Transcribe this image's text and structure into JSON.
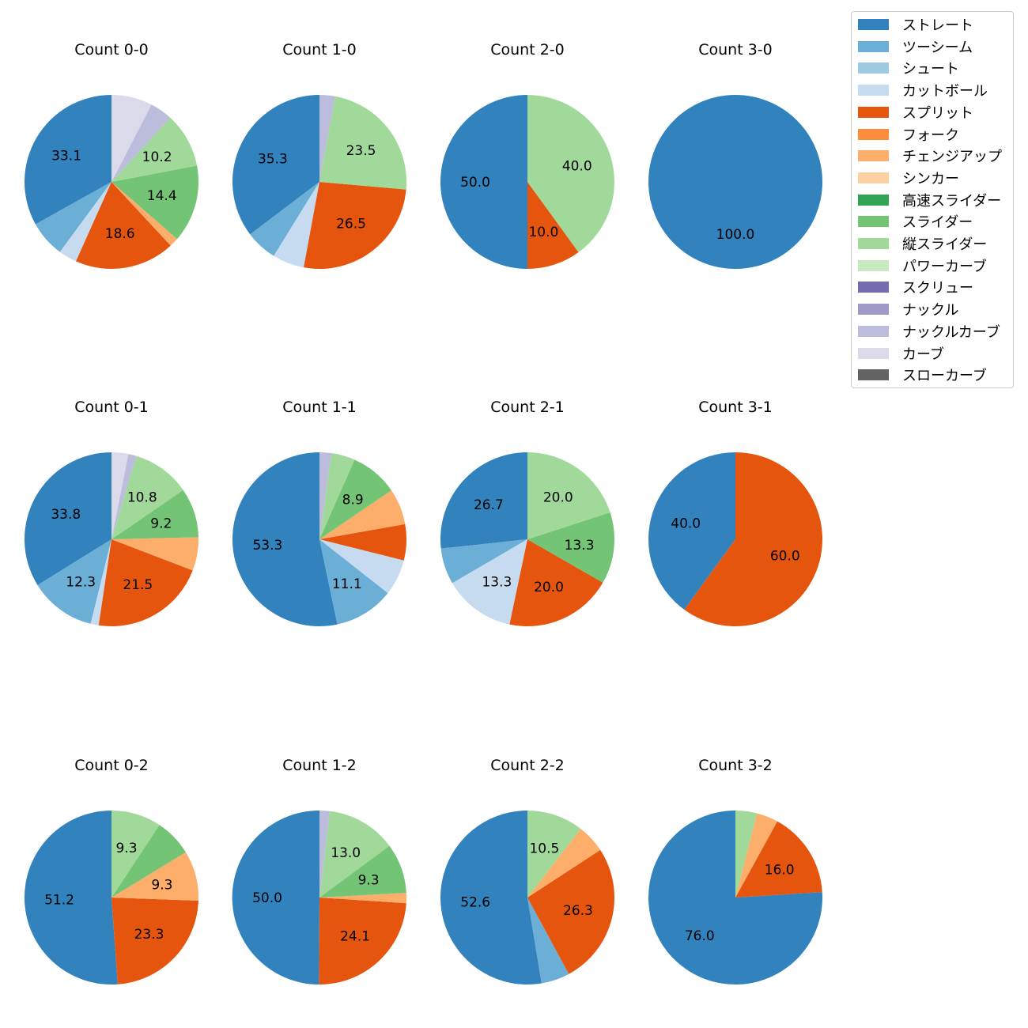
{
  "legend": {
    "items": [
      {
        "label": "ストレート",
        "color": "#3182bd"
      },
      {
        "label": "ツーシーム",
        "color": "#6baed6"
      },
      {
        "label": "シュート",
        "color": "#9ecae1"
      },
      {
        "label": "カットボール",
        "color": "#c6dbef"
      },
      {
        "label": "スプリット",
        "color": "#e6550d"
      },
      {
        "label": "フォーク",
        "color": "#fd8d3c"
      },
      {
        "label": "チェンジアップ",
        "color": "#fdae6b"
      },
      {
        "label": "シンカー",
        "color": "#fdd0a2"
      },
      {
        "label": "高速スライダー",
        "color": "#31a354"
      },
      {
        "label": "スライダー",
        "color": "#74c476"
      },
      {
        "label": "縦スライダー",
        "color": "#a1d99b"
      },
      {
        "label": "パワーカーブ",
        "color": "#c7e9c0"
      },
      {
        "label": "スクリュー",
        "color": "#756bb1"
      },
      {
        "label": "ナックル",
        "color": "#9e9ac8"
      },
      {
        "label": "ナックルカーブ",
        "color": "#bcbddc"
      },
      {
        "label": "カーブ",
        "color": "#dadaeb"
      },
      {
        "label": "スローカーブ",
        "color": "#636363"
      }
    ]
  },
  "chart_data": [
    {
      "type": "pie",
      "title": "Count 0-0",
      "slices": [
        {
          "pitch": "ストレート",
          "value": 33.1,
          "label": "33.1"
        },
        {
          "pitch": "ツーシーム",
          "value": 6.8,
          "label": ""
        },
        {
          "pitch": "カットボール",
          "value": 3.4,
          "label": ""
        },
        {
          "pitch": "スプリット",
          "value": 18.6,
          "label": "18.6"
        },
        {
          "pitch": "チェンジアップ",
          "value": 1.7,
          "label": ""
        },
        {
          "pitch": "スライダー",
          "value": 14.4,
          "label": "14.4"
        },
        {
          "pitch": "縦スライダー",
          "value": 10.2,
          "label": "10.2"
        },
        {
          "pitch": "ナックルカーブ",
          "value": 4.2,
          "label": ""
        },
        {
          "pitch": "カーブ",
          "value": 7.6,
          "label": ""
        }
      ]
    },
    {
      "type": "pie",
      "title": "Count 1-0",
      "slices": [
        {
          "pitch": "ストレート",
          "value": 35.3,
          "label": "35.3"
        },
        {
          "pitch": "ツーシーム",
          "value": 5.9,
          "label": ""
        },
        {
          "pitch": "カットボール",
          "value": 5.9,
          "label": ""
        },
        {
          "pitch": "スプリット",
          "value": 26.5,
          "label": "26.5"
        },
        {
          "pitch": "縦スライダー",
          "value": 23.5,
          "label": "23.5"
        },
        {
          "pitch": "ナックルカーブ",
          "value": 2.9,
          "label": ""
        }
      ]
    },
    {
      "type": "pie",
      "title": "Count 2-0",
      "slices": [
        {
          "pitch": "ストレート",
          "value": 50.0,
          "label": "50.0"
        },
        {
          "pitch": "スプリット",
          "value": 10.0,
          "label": "10.0"
        },
        {
          "pitch": "縦スライダー",
          "value": 40.0,
          "label": "40.0"
        }
      ]
    },
    {
      "type": "pie",
      "title": "Count 3-0",
      "slices": [
        {
          "pitch": "ストレート",
          "value": 100.0,
          "label": "100.0"
        }
      ]
    },
    {
      "type": "pie",
      "title": "Count 0-1",
      "slices": [
        {
          "pitch": "ストレート",
          "value": 33.8,
          "label": "33.8"
        },
        {
          "pitch": "ツーシーム",
          "value": 12.3,
          "label": "12.3"
        },
        {
          "pitch": "カットボール",
          "value": 1.5,
          "label": ""
        },
        {
          "pitch": "スプリット",
          "value": 21.5,
          "label": "21.5"
        },
        {
          "pitch": "チェンジアップ",
          "value": 6.2,
          "label": ""
        },
        {
          "pitch": "スライダー",
          "value": 9.2,
          "label": "9.2"
        },
        {
          "pitch": "縦スライダー",
          "value": 10.8,
          "label": "10.8"
        },
        {
          "pitch": "ナックルカーブ",
          "value": 1.5,
          "label": ""
        },
        {
          "pitch": "カーブ",
          "value": 3.1,
          "label": ""
        }
      ]
    },
    {
      "type": "pie",
      "title": "Count 1-1",
      "slices": [
        {
          "pitch": "ストレート",
          "value": 53.3,
          "label": "53.3"
        },
        {
          "pitch": "ツーシーム",
          "value": 11.1,
          "label": "11.1"
        },
        {
          "pitch": "カットボール",
          "value": 6.7,
          "label": ""
        },
        {
          "pitch": "スプリット",
          "value": 6.7,
          "label": ""
        },
        {
          "pitch": "チェンジアップ",
          "value": 6.7,
          "label": ""
        },
        {
          "pitch": "スライダー",
          "value": 8.9,
          "label": "8.9"
        },
        {
          "pitch": "縦スライダー",
          "value": 4.4,
          "label": ""
        },
        {
          "pitch": "ナックルカーブ",
          "value": 2.2,
          "label": ""
        }
      ]
    },
    {
      "type": "pie",
      "title": "Count 2-1",
      "slices": [
        {
          "pitch": "ストレート",
          "value": 26.7,
          "label": "26.7"
        },
        {
          "pitch": "ツーシーム",
          "value": 6.7,
          "label": ""
        },
        {
          "pitch": "カットボール",
          "value": 13.3,
          "label": "13.3"
        },
        {
          "pitch": "スプリット",
          "value": 20.0,
          "label": "20.0"
        },
        {
          "pitch": "スライダー",
          "value": 13.3,
          "label": "13.3"
        },
        {
          "pitch": "縦スライダー",
          "value": 20.0,
          "label": "20.0"
        }
      ]
    },
    {
      "type": "pie",
      "title": "Count 3-1",
      "slices": [
        {
          "pitch": "ストレート",
          "value": 40.0,
          "label": "40.0"
        },
        {
          "pitch": "スプリット",
          "value": 60.0,
          "label": "60.0"
        }
      ]
    },
    {
      "type": "pie",
      "title": "Count 0-2",
      "slices": [
        {
          "pitch": "ストレート",
          "value": 51.2,
          "label": "51.2"
        },
        {
          "pitch": "スプリット",
          "value": 23.3,
          "label": "23.3"
        },
        {
          "pitch": "チェンジアップ",
          "value": 9.3,
          "label": "9.3"
        },
        {
          "pitch": "スライダー",
          "value": 7.0,
          "label": ""
        },
        {
          "pitch": "縦スライダー",
          "value": 9.3,
          "label": "9.3"
        }
      ]
    },
    {
      "type": "pie",
      "title": "Count 1-2",
      "slices": [
        {
          "pitch": "ストレート",
          "value": 50.0,
          "label": "50.0"
        },
        {
          "pitch": "スプリット",
          "value": 24.1,
          "label": "24.1"
        },
        {
          "pitch": "チェンジアップ",
          "value": 1.9,
          "label": ""
        },
        {
          "pitch": "スライダー",
          "value": 9.3,
          "label": "9.3"
        },
        {
          "pitch": "縦スライダー",
          "value": 13.0,
          "label": "13.0"
        },
        {
          "pitch": "ナックルカーブ",
          "value": 1.9,
          "label": ""
        }
      ]
    },
    {
      "type": "pie",
      "title": "Count 2-2",
      "slices": [
        {
          "pitch": "ストレート",
          "value": 52.6,
          "label": "52.6"
        },
        {
          "pitch": "ツーシーム",
          "value": 5.3,
          "label": ""
        },
        {
          "pitch": "スプリット",
          "value": 26.3,
          "label": "26.3"
        },
        {
          "pitch": "チェンジアップ",
          "value": 5.3,
          "label": ""
        },
        {
          "pitch": "縦スライダー",
          "value": 10.5,
          "label": "10.5"
        }
      ]
    },
    {
      "type": "pie",
      "title": "Count 3-2",
      "slices": [
        {
          "pitch": "ストレート",
          "value": 76.0,
          "label": "76.0"
        },
        {
          "pitch": "スプリット",
          "value": 16.0,
          "label": "16.0"
        },
        {
          "pitch": "チェンジアップ",
          "value": 4.0,
          "label": ""
        },
        {
          "pitch": "縦スライダー",
          "value": 4.0,
          "label": ""
        }
      ]
    }
  ]
}
